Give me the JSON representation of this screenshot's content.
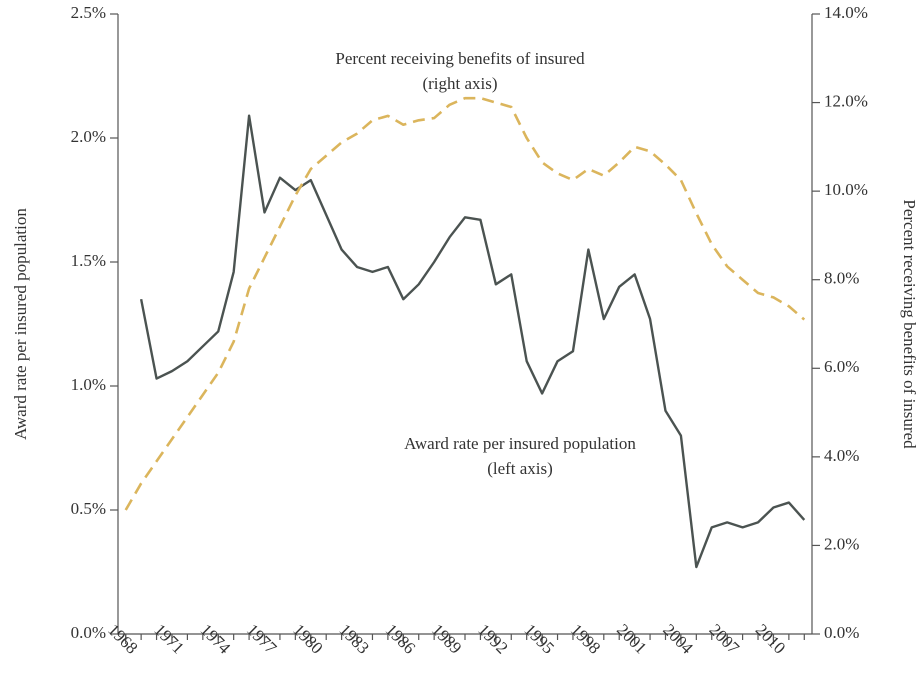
{
  "chart_data": {
    "type": "line",
    "x": [
      1968,
      1969,
      1970,
      1971,
      1972,
      1973,
      1974,
      1975,
      1976,
      1977,
      1978,
      1979,
      1980,
      1981,
      1982,
      1983,
      1984,
      1985,
      1986,
      1987,
      1988,
      1989,
      1990,
      1991,
      1992,
      1993,
      1994,
      1995,
      1996,
      1997,
      1998,
      1999,
      2000,
      2001,
      2002,
      2003,
      2004,
      2005,
      2006,
      2007,
      2008,
      2009,
      2010,
      2011,
      2012
    ],
    "xlim": [
      1967.5,
      2012.5
    ],
    "xticks": [
      1968,
      1971,
      1974,
      1977,
      1980,
      1983,
      1986,
      1989,
      1992,
      1995,
      1998,
      2001,
      2004,
      2007,
      2010
    ],
    "ylim": [
      0,
      2.5
    ],
    "yticks": [
      {
        "value": 0,
        "label": "0.0%"
      },
      {
        "value": 0.5,
        "label": "0.5%"
      },
      {
        "value": 1,
        "label": "1.0%"
      },
      {
        "value": 1.5,
        "label": "1.5%"
      },
      {
        "value": 2,
        "label": "2.0%"
      },
      {
        "value": 2.5,
        "label": "2.5%"
      }
    ],
    "y2lim": [
      0,
      14
    ],
    "y2ticks": [
      {
        "value": 0,
        "label": "0.0%"
      },
      {
        "value": 2,
        "label": "2.0%"
      },
      {
        "value": 4,
        "label": "4.0%"
      },
      {
        "value": 6,
        "label": "6.0%"
      },
      {
        "value": 8,
        "label": "8.0%"
      },
      {
        "value": 10,
        "label": "10.0%"
      },
      {
        "value": 12,
        "label": "12.0%"
      },
      {
        "value": 14,
        "label": "14.0%"
      }
    ],
    "ylabel": "Award rate per insured population",
    "y2label": "Percent receiving benefits of insured",
    "series": [
      {
        "name": "Award rate per insured population",
        "note": "(left axis)",
        "color": "#4b5351",
        "dashed": false,
        "axis": "y",
        "values": [
          null,
          1.35,
          1.03,
          1.06,
          1.1,
          1.16,
          1.22,
          1.46,
          2.09,
          1.7,
          1.84,
          1.79,
          1.83,
          1.69,
          1.55,
          1.48,
          1.46,
          1.48,
          1.35,
          1.41,
          1.5,
          1.6,
          1.68,
          1.67,
          1.41,
          1.45,
          1.1,
          0.97,
          1.1,
          1.14,
          1.55,
          1.27,
          1.4,
          1.45,
          1.27,
          0.9,
          0.8,
          0.27,
          0.43,
          0.45,
          0.43,
          0.45,
          0.51,
          0.53,
          0.46
        ]
      },
      {
        "name": "Percent receiving benefits of insured",
        "note": "(right axis)",
        "color": "#dbb55c",
        "dashed": true,
        "axis": "y2",
        "values": [
          2.8,
          3.4,
          3.9,
          4.4,
          4.9,
          5.4,
          5.9,
          6.6,
          7.8,
          8.5,
          9.2,
          9.9,
          10.5,
          10.8,
          11.1,
          11.3,
          11.6,
          11.7,
          11.5,
          11.6,
          11.65,
          11.95,
          12.1,
          12.1,
          12.0,
          11.9,
          11.2,
          10.65,
          10.4,
          10.25,
          10.5,
          10.35,
          10.65,
          11.0,
          10.9,
          10.6,
          10.25,
          9.5,
          8.8,
          8.3,
          8.0,
          7.7,
          7.6,
          7.4,
          7.1
        ]
      }
    ]
  }
}
